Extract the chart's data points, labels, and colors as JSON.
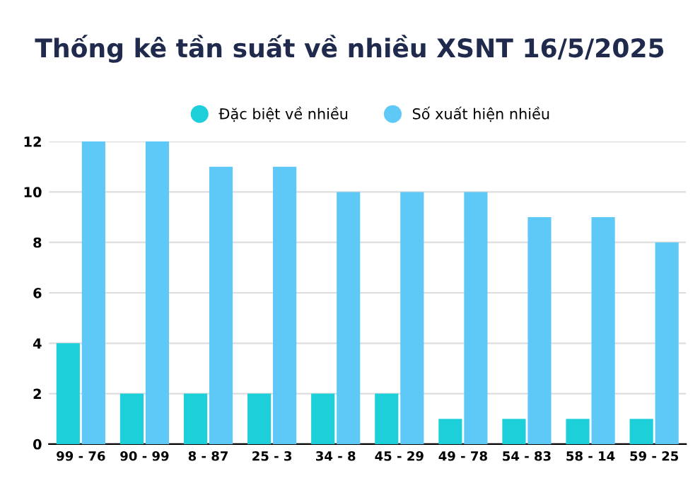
{
  "chart_data": {
    "type": "bar",
    "title": "Thống kê tần suất về nhiều XSNT 16/5/2025",
    "categories": [
      "99 - 76",
      "90 - 99",
      "8 - 87",
      "25 - 3",
      "34 - 8",
      "45 - 29",
      "49 - 78",
      "54 - 83",
      "58 - 14",
      "59 - 25"
    ],
    "series": [
      {
        "name": "Đặc biệt về nhiều",
        "color": "#1dcfd8",
        "values": [
          4,
          2,
          2,
          2,
          2,
          2,
          1,
          1,
          1,
          1
        ]
      },
      {
        "name": "Số xuất hiện nhiều",
        "color": "#5ec8f6",
        "values": [
          12,
          12,
          11,
          11,
          10,
          10,
          10,
          9,
          9,
          8
        ]
      }
    ],
    "ylim": [
      0,
      12
    ],
    "yticks": [
      0,
      2,
      4,
      6,
      8,
      10,
      12
    ],
    "grid": "y",
    "legend": "top"
  }
}
